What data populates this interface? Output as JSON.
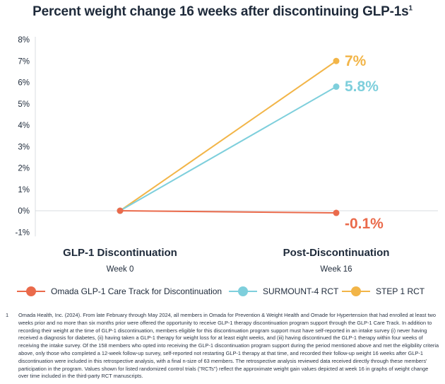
{
  "chart_data": {
    "type": "line",
    "title": "Percent weight change 16 weeks after discontinuing GLP-1s",
    "title_superscript": "1",
    "x": [
      "GLP-1 Discontinuation",
      "Post-Discontinuation"
    ],
    "x_sublabels": [
      "Week 0",
      "Week 16"
    ],
    "yticks": [
      "8%",
      "7%",
      "6%",
      "5%",
      "4%",
      "3%",
      "2%",
      "1%",
      "0%",
      "-1%"
    ],
    "ylim": [
      -1,
      8
    ],
    "grid": false,
    "legend_position": "bottom",
    "series": [
      {
        "name": "Omada GLP-1 Care Track for Discontinuation",
        "values": [
          0,
          -0.1
        ],
        "end_label": "-0.1%",
        "color": "#ea6a4b"
      },
      {
        "name": "SURMOUNT-4 RCT",
        "values": [
          0,
          5.8
        ],
        "end_label": "5.8%",
        "color": "#7ecfdc"
      },
      {
        "name": "STEP 1 RCT",
        "values": [
          0,
          7
        ],
        "end_label": "7%",
        "color": "#f2b548"
      }
    ]
  },
  "footnote": {
    "mark": "1",
    "text": "Omada Health, Inc. (2024). From late February through May 2024, all members in Omada for Prevention & Weight Health and Omade for Hypertension that had enrolled at least two weeks prior and no more than six months prior were offered the opportunity to receive GLP-1 therapy discontinuation program support through the GLP-1 Care Track. In addition to recording their weight at the time of GLP-1 discontinuation, members eligible for this discontinuation program support must have self-reported in an intake survey (i) never having received a diagnosis for diabetes, (ii) having taken a GLP-1 therapy for weight loss for at least eight weeks, and (iii) having discontinued the GLP-1 therapy within four weeks of receiving the intake survey. Of the 158 members who opted into receiving the GLP-1 discontinuation program support during the period mentioned above and met the eligibility criteria above, only those who completed a 12-week follow-up survey, self-reported not restarting GLP-1 therapy at that time, and recorded their follow-up weight 16 weeks after GLP-1 discontinuation were included in this retrospective analysis, with a final n-size of 63 members. The retrospective analysis reviewed data received directly through these members' participation in the program. Values shown for listed randomized control trials (\"RCTs\") reflect the approximate weight gain values depicted at week 16 in graphs of weight change over time included in the third-party RCT manuscripts."
  }
}
